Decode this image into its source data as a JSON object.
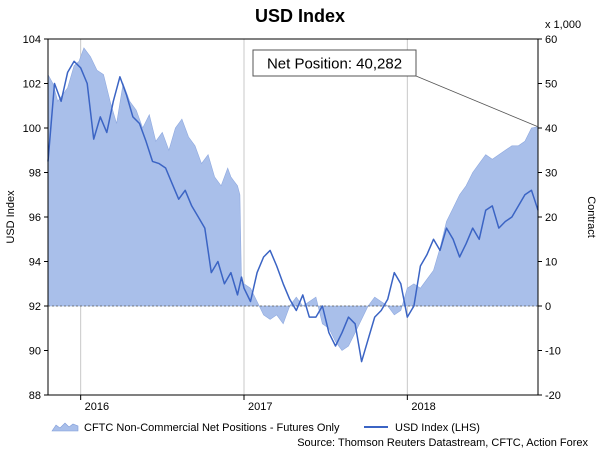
{
  "chart_data": {
    "type": "line",
    "title": "USD Index",
    "ylabel": "USD Index",
    "y2label": "Contract",
    "y2_unit": "x 1,000",
    "ylim": [
      88,
      104
    ],
    "y2lim": [
      -20,
      60
    ],
    "yticks": [
      88,
      90,
      92,
      94,
      96,
      98,
      100,
      102,
      104
    ],
    "y2ticks": [
      -20,
      -10,
      0,
      10,
      20,
      30,
      40,
      50,
      60
    ],
    "xlim": [
      2015.8,
      2018.8
    ],
    "xticks": [
      {
        "label": "2016",
        "x": 2016.0
      },
      {
        "label": "2017",
        "x": 2017.0
      },
      {
        "label": "2018",
        "x": 2018.0
      }
    ],
    "grid": "vertical",
    "legend_position": "bottom",
    "series": [
      {
        "name": "CFTC Non-Commercial Net Positions - Futures Only",
        "kind": "area",
        "axis": "right",
        "color": "#a9bfea",
        "x": [
          2015.8,
          2015.83,
          2015.86,
          2015.92,
          2015.96,
          2015.99,
          2016.02,
          2016.06,
          2016.1,
          2016.14,
          2016.18,
          2016.22,
          2016.26,
          2016.3,
          2016.34,
          2016.38,
          2016.42,
          2016.46,
          2016.5,
          2016.54,
          2016.58,
          2016.62,
          2016.66,
          2016.7,
          2016.74,
          2016.78,
          2016.82,
          2016.86,
          2016.9,
          2016.92,
          2016.94,
          2016.96,
          2016.975,
          2016.985,
          2017.0,
          2017.04,
          2017.08,
          2017.12,
          2017.16,
          2017.2,
          2017.24,
          2017.28,
          2017.32,
          2017.36,
          2017.4,
          2017.44,
          2017.48,
          2017.52,
          2017.56,
          2017.6,
          2017.64,
          2017.68,
          2017.72,
          2017.76,
          2017.8,
          2017.84,
          2017.88,
          2017.92,
          2017.96,
          2018.0,
          2018.04,
          2018.08,
          2018.12,
          2018.16,
          2018.2,
          2018.24,
          2018.28,
          2018.32,
          2018.36,
          2018.4,
          2018.44,
          2018.48,
          2018.52,
          2018.56,
          2018.6,
          2018.64,
          2018.68,
          2018.72,
          2018.76,
          2018.8
        ],
        "values": [
          52,
          50,
          46,
          49,
          54,
          55,
          58,
          56,
          53,
          52,
          46,
          41,
          50,
          46,
          44,
          40,
          43,
          37,
          39,
          35,
          40,
          42,
          38,
          36,
          32,
          34,
          29,
          27,
          31,
          29,
          28,
          27,
          25,
          5,
          5,
          4,
          1,
          -2,
          -3,
          -2,
          -4,
          0,
          2,
          0,
          1,
          2,
          -4,
          -5,
          -8,
          -10,
          -9,
          -6,
          -3,
          0,
          2,
          1,
          0,
          -2,
          -1,
          4,
          5,
          4,
          6,
          8,
          13,
          19,
          22,
          25,
          27,
          30,
          32,
          34,
          33,
          34,
          35,
          36,
          36,
          37,
          40,
          40.282
        ]
      },
      {
        "name": "USD Index (LHS)",
        "kind": "line",
        "axis": "left",
        "color": "#3b64c4",
        "x": [
          2015.8,
          2015.84,
          2015.88,
          2015.92,
          2015.96,
          2016.0,
          2016.04,
          2016.08,
          2016.12,
          2016.16,
          2016.2,
          2016.24,
          2016.28,
          2016.32,
          2016.36,
          2016.4,
          2016.44,
          2016.48,
          2016.52,
          2016.56,
          2016.6,
          2016.64,
          2016.68,
          2016.72,
          2016.76,
          2016.8,
          2016.84,
          2016.88,
          2016.92,
          2016.96,
          2016.985,
          2017.0,
          2017.04,
          2017.08,
          2017.12,
          2017.16,
          2017.2,
          2017.24,
          2017.28,
          2017.32,
          2017.36,
          2017.4,
          2017.44,
          2017.48,
          2017.52,
          2017.56,
          2017.6,
          2017.64,
          2017.68,
          2017.72,
          2017.76,
          2017.8,
          2017.84,
          2017.88,
          2017.92,
          2017.96,
          2018.0,
          2018.04,
          2018.08,
          2018.12,
          2018.16,
          2018.2,
          2018.24,
          2018.28,
          2018.32,
          2018.36,
          2018.4,
          2018.44,
          2018.48,
          2018.52,
          2018.56,
          2018.6,
          2018.64,
          2018.68,
          2018.72,
          2018.76,
          2018.8
        ],
        "values": [
          98.5,
          102.0,
          101.2,
          102.5,
          103.0,
          102.7,
          102.0,
          99.5,
          100.5,
          99.8,
          101.2,
          102.3,
          101.5,
          100.5,
          100.2,
          99.4,
          98.5,
          98.4,
          98.2,
          97.5,
          96.8,
          97.2,
          96.5,
          96.0,
          95.5,
          93.5,
          94.0,
          93.0,
          93.5,
          92.5,
          93.3,
          92.8,
          92.2,
          93.5,
          94.2,
          94.5,
          93.8,
          93.0,
          92.3,
          91.8,
          92.5,
          91.5,
          91.5,
          92.0,
          90.8,
          90.2,
          90.8,
          91.5,
          91.2,
          89.5,
          90.5,
          91.5,
          91.8,
          92.3,
          93.5,
          93.0,
          91.5,
          92.0,
          93.8,
          94.3,
          95.0,
          94.5,
          95.5,
          95.0,
          94.2,
          94.8,
          95.5,
          95.0,
          96.3,
          96.5,
          95.5,
          95.8,
          96.0,
          96.5,
          97.0,
          97.2,
          96.3
        ]
      }
    ],
    "annotation": {
      "label": "Net Position: 40,282",
      "x": 2018.8,
      "value": 40.282,
      "axis": "right"
    }
  },
  "source": "Source: Thomson Reuters Datastream, CFTC, Action Forex"
}
